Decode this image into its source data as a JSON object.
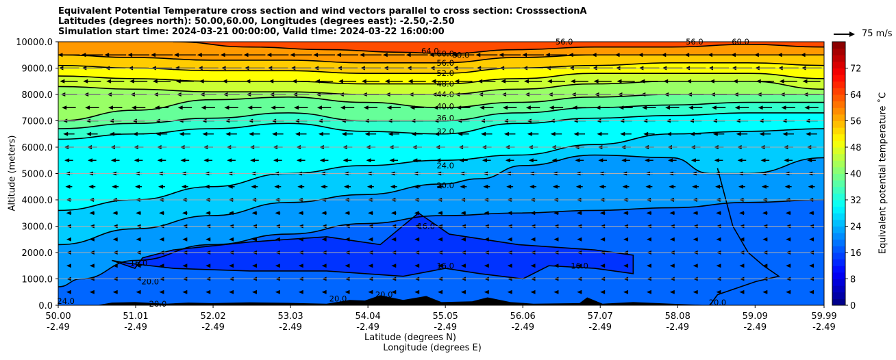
{
  "chart_data": {
    "type": "contourf cross-section with wind vectors",
    "title_lines": [
      "Equivalent Potential Temperature cross section and wind vectors parallel to cross section: CrosssectionA",
      "Latitudes (degrees north): 50.00,60.00, Longitudes (degrees east): -2.50,-2.50",
      "Simulation start time: 2024-03-21 00:00:00, Valid time: 2024-03-22 16:00:00"
    ],
    "xlabel_line1": "Latitude (degrees N)",
    "xlabel_line2": "Longitude (degrees E)",
    "ylabel": "Altitude (meters)",
    "xlim": [
      50.0,
      59.99
    ],
    "ylim": [
      0,
      10000
    ],
    "x_ticks": [
      {
        "lat": 50.0,
        "lat_label": "50.00",
        "lon_label": "-2.49"
      },
      {
        "lat": 51.01,
        "lat_label": "51.01",
        "lon_label": "-2.49"
      },
      {
        "lat": 52.02,
        "lat_label": "52.02",
        "lon_label": "-2.49"
      },
      {
        "lat": 53.03,
        "lat_label": "53.03",
        "lon_label": "-2.49"
      },
      {
        "lat": 54.04,
        "lat_label": "54.04",
        "lon_label": "-2.49"
      },
      {
        "lat": 55.05,
        "lat_label": "55.05",
        "lon_label": "-2.49"
      },
      {
        "lat": 56.06,
        "lat_label": "56.06",
        "lon_label": "-2.49"
      },
      {
        "lat": 57.07,
        "lat_label": "57.07",
        "lon_label": "-2.49"
      },
      {
        "lat": 58.08,
        "lat_label": "58.08",
        "lon_label": "-2.49"
      },
      {
        "lat": 59.09,
        "lat_label": "59.09",
        "lon_label": "-2.49"
      },
      {
        "lat": 59.99,
        "lat_label": "59.99",
        "lon_label": "-2.49"
      }
    ],
    "y_ticks": [
      {
        "value": 0,
        "label": "0.0"
      },
      {
        "value": 1000,
        "label": "1000.0"
      },
      {
        "value": 2000,
        "label": "2000.0"
      },
      {
        "value": 3000,
        "label": "3000.0"
      },
      {
        "value": 4000,
        "label": "4000.0"
      },
      {
        "value": 5000,
        "label": "5000.0"
      },
      {
        "value": 6000,
        "label": "6000.0"
      },
      {
        "value": 7000,
        "label": "7000.0"
      },
      {
        "value": 8000,
        "label": "8000.0"
      },
      {
        "value": 9000,
        "label": "9000.0"
      },
      {
        "value": 10000,
        "label": "10000.0"
      }
    ],
    "grid": "horizontal",
    "colorbar": {
      "label": "Equivalent potential temperature $^\\circ$C",
      "label_display": "Equivalent potential temperature ˚C",
      "range": [
        0,
        80
      ],
      "ticks": [
        {
          "value": 0,
          "label": "0"
        },
        {
          "value": 8,
          "label": "8"
        },
        {
          "value": 16,
          "label": "16"
        },
        {
          "value": 24,
          "label": "24"
        },
        {
          "value": 32,
          "label": "32"
        },
        {
          "value": 40,
          "label": "40"
        },
        {
          "value": 48,
          "label": "48"
        },
        {
          "value": 56,
          "label": "56"
        },
        {
          "value": 64,
          "label": "64"
        },
        {
          "value": 72,
          "label": "72"
        }
      ]
    },
    "quiver_key": {
      "label": "75 m/s"
    },
    "contour_lines": [
      {
        "level": 16,
        "label": "16.0",
        "type": "closed"
      },
      {
        "level": 20,
        "label": "20.0",
        "points": [
          [
            50.0,
            700
          ],
          [
            50.3,
            1000
          ],
          [
            51.0,
            1700
          ],
          [
            52.0,
            2300
          ],
          [
            53.0,
            2700
          ],
          [
            54.0,
            3100
          ],
          [
            55.0,
            3400
          ],
          [
            56.0,
            3500
          ],
          [
            57.0,
            3600
          ],
          [
            58.0,
            3700
          ],
          [
            59.0,
            3900
          ],
          [
            59.99,
            4000
          ]
        ]
      },
      {
        "level": 24,
        "label": "24.0",
        "points": [
          [
            50.0,
            2300
          ],
          [
            51.0,
            2900
          ],
          [
            52.0,
            3400
          ],
          [
            53.0,
            3900
          ],
          [
            54.0,
            4200
          ],
          [
            55.0,
            4600
          ],
          [
            55.5,
            4800
          ],
          [
            56.06,
            5300
          ],
          [
            57.0,
            5700
          ],
          [
            58.0,
            5600
          ],
          [
            58.5,
            5000
          ],
          [
            59.0,
            5000
          ],
          [
            59.99,
            5600
          ]
        ]
      },
      {
        "level": 28,
        "label": "",
        "points": [
          [
            50.0,
            3600
          ],
          [
            51.0,
            4000
          ],
          [
            52.0,
            4500
          ],
          [
            53.0,
            5000
          ],
          [
            54.0,
            5300
          ],
          [
            55.0,
            5500
          ],
          [
            56.0,
            5700
          ],
          [
            57.0,
            6100
          ],
          [
            58.0,
            6500
          ],
          [
            59.0,
            6600
          ],
          [
            59.99,
            6700
          ]
        ]
      },
      {
        "level": 32,
        "label": "32.0",
        "points": [
          [
            50.0,
            6300
          ],
          [
            51.0,
            6500
          ],
          [
            52.0,
            6700
          ],
          [
            53.0,
            6900
          ],
          [
            54.0,
            6600
          ],
          [
            55.0,
            6500
          ],
          [
            56.0,
            6900
          ],
          [
            57.0,
            7100
          ],
          [
            58.0,
            7200
          ],
          [
            59.0,
            7300
          ],
          [
            59.99,
            7300
          ]
        ]
      },
      {
        "level": 36,
        "label": "36.0",
        "points": [
          [
            50.0,
            6700
          ],
          [
            51.0,
            6900
          ],
          [
            52.0,
            7100
          ],
          [
            53.0,
            7300
          ],
          [
            54.0,
            7000
          ],
          [
            55.0,
            7000
          ],
          [
            56.0,
            7300
          ],
          [
            57.0,
            7500
          ],
          [
            58.0,
            7600
          ],
          [
            59.0,
            7700
          ],
          [
            59.99,
            7700
          ]
        ]
      },
      {
        "level": 40,
        "label": "40.0",
        "points": [
          [
            50.0,
            7000
          ],
          [
            51.0,
            7400
          ],
          [
            52.0,
            7800
          ],
          [
            53.0,
            7900
          ],
          [
            54.0,
            7700
          ],
          [
            55.0,
            7500
          ],
          [
            56.0,
            7700
          ],
          [
            57.0,
            7900
          ],
          [
            58.0,
            8000
          ],
          [
            59.0,
            8000
          ],
          [
            59.99,
            8000
          ]
        ]
      },
      {
        "level": 44,
        "label": "44.0",
        "points": [
          [
            50.0,
            8300
          ],
          [
            51.0,
            8200
          ],
          [
            52.0,
            8100
          ],
          [
            53.0,
            8100
          ],
          [
            54.0,
            8000
          ],
          [
            55.0,
            8000
          ],
          [
            56.0,
            8200
          ],
          [
            57.0,
            8400
          ],
          [
            58.0,
            8500
          ],
          [
            59.0,
            8500
          ],
          [
            59.99,
            8200
          ]
        ]
      },
      {
        "level": 48,
        "label": "48.0",
        "points": [
          [
            50.0,
            8700
          ],
          [
            51.0,
            8600
          ],
          [
            52.0,
            8500
          ],
          [
            53.0,
            8500
          ],
          [
            54.0,
            8400
          ],
          [
            55.0,
            8400
          ],
          [
            56.0,
            8600
          ],
          [
            57.0,
            8800
          ],
          [
            58.0,
            8800
          ],
          [
            59.0,
            8800
          ],
          [
            59.99,
            8600
          ]
        ]
      },
      {
        "level": 52,
        "label": "52.0",
        "points": [
          [
            50.0,
            9100
          ],
          [
            51.0,
            9000
          ],
          [
            52.0,
            8900
          ],
          [
            53.0,
            8900
          ],
          [
            54.0,
            8800
          ],
          [
            55.0,
            8800
          ],
          [
            56.0,
            9000
          ],
          [
            57.0,
            9100
          ],
          [
            58.0,
            9200
          ],
          [
            59.0,
            9200
          ],
          [
            59.99,
            9100
          ]
        ]
      },
      {
        "level": 56,
        "label": "56.0",
        "points": [
          [
            50.0,
            9500
          ],
          [
            51.0,
            9400
          ],
          [
            52.0,
            9300
          ],
          [
            53.0,
            9300
          ],
          [
            54.0,
            9200
          ],
          [
            55.0,
            9200
          ],
          [
            56.0,
            9400
          ],
          [
            57.0,
            9500
          ],
          [
            58.0,
            9500
          ],
          [
            59.0,
            9500
          ],
          [
            59.99,
            9500
          ]
        ]
      },
      {
        "level": 60,
        "label": "60.0",
        "points": [
          [
            51.5,
            10000
          ],
          [
            52.5,
            9800
          ],
          [
            53.5,
            9700
          ],
          [
            54.5,
            9600
          ],
          [
            55.05,
            9550
          ],
          [
            56.0,
            9700
          ],
          [
            57.0,
            9800
          ],
          [
            58.0,
            9800
          ],
          [
            59.0,
            9900
          ],
          [
            59.99,
            9800
          ]
        ]
      }
    ],
    "contour_inline_labels": [
      {
        "text": "64.0",
        "lat": 54.85,
        "alt": 9650
      },
      {
        "text": "60.0",
        "lat": 55.05,
        "alt": 9550
      },
      {
        "text": "60.0",
        "lat": 55.25,
        "alt": 9500
      },
      {
        "text": "56.0",
        "lat": 55.05,
        "alt": 9200
      },
      {
        "text": "52.0",
        "lat": 55.05,
        "alt": 8800
      },
      {
        "text": "48.0",
        "lat": 55.05,
        "alt": 8400
      },
      {
        "text": "44.0",
        "lat": 55.05,
        "alt": 8000
      },
      {
        "text": "40.0",
        "lat": 55.05,
        "alt": 7550
      },
      {
        "text": "36.0",
        "lat": 55.05,
        "alt": 7100
      },
      {
        "text": "32.0",
        "lat": 55.05,
        "alt": 6600
      },
      {
        "text": "24.0",
        "lat": 55.05,
        "alt": 5300
      },
      {
        "text": "20.0",
        "lat": 55.05,
        "alt": 4550
      },
      {
        "text": "16.0",
        "lat": 54.8,
        "alt": 3000
      },
      {
        "text": "16.0",
        "lat": 55.05,
        "alt": 1500
      },
      {
        "text": "16.0",
        "lat": 51.05,
        "alt": 1600
      },
      {
        "text": "16.0",
        "lat": 56.8,
        "alt": 1500
      },
      {
        "text": "20.0",
        "lat": 51.2,
        "alt": 900
      },
      {
        "text": "20.0",
        "lat": 51.3,
        "alt": 50
      },
      {
        "text": "20.0",
        "lat": 53.65,
        "alt": 250
      },
      {
        "text": "20.0",
        "lat": 54.25,
        "alt": 400
      },
      {
        "text": "20.0",
        "lat": 58.6,
        "alt": 100
      },
      {
        "text": "24.0",
        "lat": 50.1,
        "alt": 150
      },
      {
        "text": "56.0",
        "lat": 56.6,
        "alt": 10000
      },
      {
        "text": "56.0",
        "lat": 58.3,
        "alt": 10000
      },
      {
        "text": "60.0",
        "lat": 58.9,
        "alt": 10000
      }
    ],
    "wind_field": {
      "direction": "southward (towards 50N) aloft, weakening with decreasing altitude",
      "rows_alt": [
        9500,
        9000,
        8500,
        8000,
        7500,
        7000,
        6500,
        6000,
        5500,
        5000,
        4500,
        4000,
        3500,
        3000,
        2500,
        2000,
        1500,
        1000,
        500
      ],
      "approx_speed_ms": [
        75,
        70,
        60,
        55,
        45,
        40,
        35,
        30,
        25,
        20,
        18,
        15,
        12,
        10,
        8,
        8,
        8,
        6,
        4
      ]
    }
  }
}
